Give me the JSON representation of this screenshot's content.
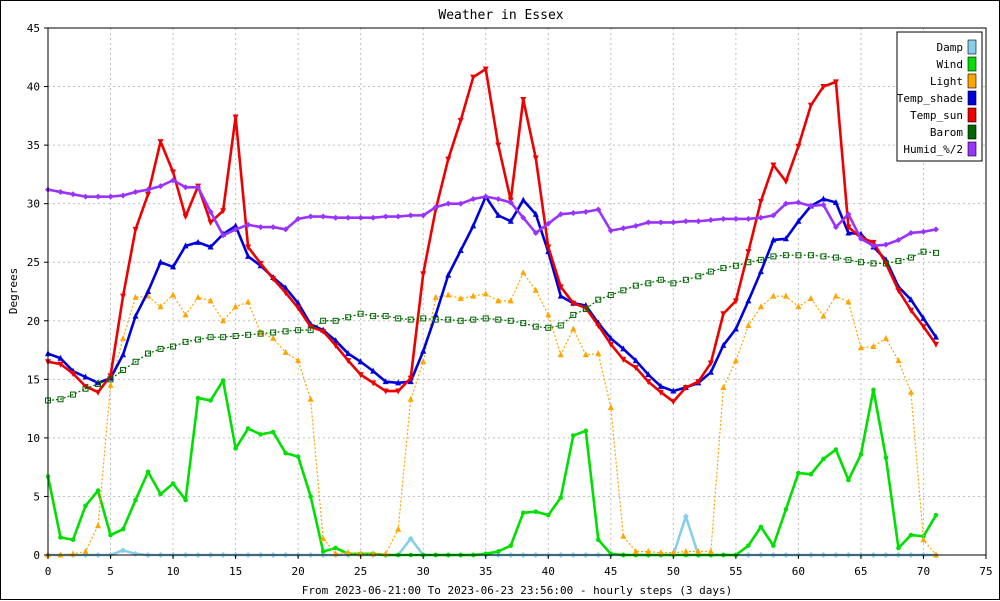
{
  "chart_data": {
    "type": "line",
    "title": "Weather in Essex",
    "xlabel": "From 2023-06-21:00 To 2023-06-23 23:56:00 - hourly steps (3 days)",
    "ylabel": "Degrees",
    "xlim": [
      0,
      75
    ],
    "ylim": [
      0,
      45
    ],
    "x_ticks": [
      0,
      5,
      10,
      15,
      20,
      25,
      30,
      35,
      40,
      45,
      50,
      55,
      60,
      65,
      70,
      75
    ],
    "y_ticks": [
      0,
      5,
      10,
      15,
      20,
      25,
      30,
      35,
      40,
      45
    ],
    "grid": true,
    "legend_position": "top-right",
    "x": [
      0,
      1,
      2,
      3,
      4,
      5,
      6,
      7,
      8,
      9,
      10,
      11,
      12,
      13,
      14,
      15,
      16,
      17,
      18,
      19,
      20,
      21,
      22,
      23,
      24,
      25,
      26,
      27,
      28,
      29,
      30,
      31,
      32,
      33,
      34,
      35,
      36,
      37,
      38,
      39,
      40,
      41,
      42,
      43,
      44,
      45,
      46,
      47,
      48,
      49,
      50,
      51,
      52,
      53,
      54,
      55,
      56,
      57,
      58,
      59,
      60,
      61,
      62,
      63,
      64,
      65,
      66,
      67,
      68,
      69,
      70,
      71
    ],
    "series": [
      {
        "name": "Damp",
        "color": "#87ceeb",
        "style": "solid",
        "marker": "diamond",
        "values": [
          0,
          0,
          0,
          0,
          0,
          0,
          0.4,
          0.1,
          0,
          0,
          0,
          0,
          0,
          0,
          0,
          0,
          0,
          0,
          0,
          0,
          0,
          0,
          0,
          0,
          0,
          0,
          0,
          0,
          0,
          1.4,
          0,
          0,
          0,
          0,
          0,
          0,
          0,
          0,
          0,
          0,
          0,
          0,
          0,
          0,
          0,
          0,
          0,
          0,
          0,
          0,
          0,
          3.3,
          0,
          0,
          0,
          0,
          0,
          0,
          0,
          0,
          0,
          0,
          0,
          0,
          0,
          0,
          0,
          0,
          0,
          0,
          0,
          0
        ]
      },
      {
        "name": "Wind",
        "color": "#00e000",
        "style": "solid",
        "marker": "dot",
        "values": [
          6.7,
          1.5,
          1.3,
          4.2,
          5.5,
          1.7,
          2.2,
          4.7,
          7.1,
          5.2,
          6.1,
          4.7,
          13.4,
          13.2,
          14.9,
          9.1,
          10.8,
          10.3,
          10.5,
          8.7,
          8.4,
          5.0,
          0.3,
          0.6,
          0.1,
          0.1,
          0.1,
          0,
          0,
          0,
          0,
          0,
          0,
          0,
          0,
          0.1,
          0.3,
          0.8,
          3.6,
          3.7,
          3.4,
          4.9,
          10.2,
          10.6,
          1.3,
          0.1,
          0,
          0,
          0,
          0,
          0,
          0,
          0,
          0,
          0,
          0,
          0.8,
          2.4,
          0.8,
          3.9,
          7.0,
          6.9,
          8.2,
          9.0,
          6.4,
          8.6,
          14.1,
          8.3,
          0.6,
          1.7,
          1.6,
          3.4
        ]
      },
      {
        "name": "Light",
        "color": "#ffa500",
        "style": "dotted",
        "marker": "triangle",
        "values": [
          0,
          0,
          0.1,
          0.3,
          2.5,
          14.5,
          18.5,
          22.0,
          22.1,
          21.2,
          22.2,
          20.5,
          22.0,
          21.7,
          20.0,
          21.2,
          21.6,
          19.0,
          18.5,
          17.3,
          16.6,
          13.3,
          1.4,
          0.1,
          0.2,
          0.1,
          0.1,
          0.1,
          2.2,
          13.3,
          16.5,
          22.0,
          22.2,
          21.9,
          22.1,
          22.3,
          21.7,
          21.7,
          24.1,
          22.6,
          20.5,
          17.1,
          19.3,
          17.1,
          17.2,
          12.6,
          1.6,
          0.3,
          0.3,
          0.2,
          0.2,
          0.3,
          0.3,
          0.3,
          14.3,
          16.6,
          19.6,
          21.2,
          22.1,
          22.1,
          21.2,
          21.9,
          20.4,
          22.1,
          21.6,
          17.7,
          17.8,
          18.5,
          16.6,
          13.9,
          1.3,
          0
        ]
      },
      {
        "name": "Temp_shade",
        "color": "#0000dd",
        "style": "solid",
        "marker": "triangle",
        "values": [
          17.2,
          16.8,
          15.7,
          15.2,
          14.7,
          15.1,
          17.1,
          20.4,
          22.5,
          25.0,
          24.6,
          26.4,
          26.7,
          26.3,
          27.4,
          28.1,
          25.5,
          24.7,
          23.7,
          22.8,
          21.5,
          19.7,
          19.2,
          18.3,
          17.2,
          16.5,
          15.7,
          14.8,
          14.7,
          14.8,
          17.4,
          20.5,
          23.9,
          26.0,
          28.1,
          30.6,
          29.0,
          28.5,
          30.3,
          29.1,
          25.9,
          22.1,
          21.5,
          21.3,
          19.8,
          18.5,
          17.6,
          16.6,
          15.4,
          14.4,
          14.0,
          14.3,
          14.7,
          15.6,
          17.9,
          19.3,
          21.7,
          24.2,
          26.9,
          27.0,
          28.5,
          29.8,
          30.4,
          30.1,
          27.5,
          27.4,
          26.3,
          25.2,
          22.9,
          21.8,
          20.2,
          18.6
        ]
      },
      {
        "name": "Temp_sun",
        "color": "#ee0000",
        "style": "solid",
        "marker": "triangle-down",
        "values": [
          16.5,
          16.3,
          15.5,
          14.4,
          13.9,
          15.3,
          22.1,
          27.8,
          30.8,
          35.3,
          32.7,
          28.9,
          31.5,
          28.4,
          29.4,
          37.4,
          26.3,
          24.9,
          23.6,
          22.4,
          21.1,
          19.5,
          19.1,
          17.9,
          16.6,
          15.4,
          14.7,
          14.0,
          14.0,
          15.1,
          24.0,
          29.5,
          33.8,
          37.1,
          40.8,
          41.5,
          35.0,
          30.3,
          38.9,
          33.9,
          26.3,
          22.9,
          21.5,
          21.1,
          19.6,
          18.0,
          16.7,
          16.0,
          14.8,
          13.9,
          13.1,
          14.3,
          14.8,
          16.4,
          20.6,
          21.7,
          25.9,
          30.2,
          33.3,
          31.9,
          34.9,
          38.4,
          40.0,
          40.4,
          28.0,
          27.1,
          26.7,
          24.9,
          22.6,
          20.9,
          19.5,
          18.0
        ]
      },
      {
        "name": "Barom",
        "color": "#006600",
        "style": "dotted",
        "marker": "square",
        "values": [
          13.2,
          13.3,
          13.7,
          14.2,
          14.6,
          15.0,
          15.8,
          16.5,
          17.2,
          17.6,
          17.8,
          18.2,
          18.4,
          18.6,
          18.6,
          18.7,
          18.8,
          18.9,
          19.0,
          19.1,
          19.2,
          19.2,
          20.0,
          20.0,
          20.3,
          20.6,
          20.4,
          20.4,
          20.2,
          20.1,
          20.2,
          20.1,
          20.1,
          20.0,
          20.1,
          20.2,
          20.1,
          20.0,
          19.8,
          19.5,
          19.4,
          19.6,
          20.5,
          21.0,
          21.8,
          22.2,
          22.6,
          23.0,
          23.2,
          23.5,
          23.2,
          23.5,
          23.8,
          24.2,
          24.5,
          24.7,
          25.0,
          25.2,
          25.5,
          25.6,
          25.6,
          25.6,
          25.5,
          25.4,
          25.2,
          25.0,
          24.9,
          24.9,
          25.1,
          25.4,
          25.9,
          25.8
        ]
      },
      {
        "name": "Humid_%/2",
        "color": "#9933ff",
        "style": "solid",
        "marker": "diamond",
        "values": [
          31.2,
          31.0,
          30.8,
          30.6,
          30.6,
          30.6,
          30.7,
          31.0,
          31.2,
          31.5,
          32.0,
          31.4,
          31.4,
          29.3,
          27.3,
          27.8,
          28.2,
          28.0,
          28.0,
          27.8,
          28.7,
          28.9,
          28.9,
          28.8,
          28.8,
          28.8,
          28.8,
          28.9,
          28.9,
          29.0,
          29.0,
          29.7,
          30.0,
          30.0,
          30.4,
          30.6,
          30.4,
          30.1,
          28.8,
          27.5,
          28.3,
          29.1,
          29.2,
          29.3,
          29.5,
          27.7,
          27.9,
          28.1,
          28.4,
          28.4,
          28.4,
          28.5,
          28.5,
          28.6,
          28.7,
          28.7,
          28.7,
          28.8,
          29.0,
          30.0,
          30.1,
          29.8,
          29.9,
          28.0,
          29.1,
          27.0,
          26.4,
          26.5,
          26.9,
          27.5,
          27.6,
          27.8
        ]
      }
    ]
  }
}
